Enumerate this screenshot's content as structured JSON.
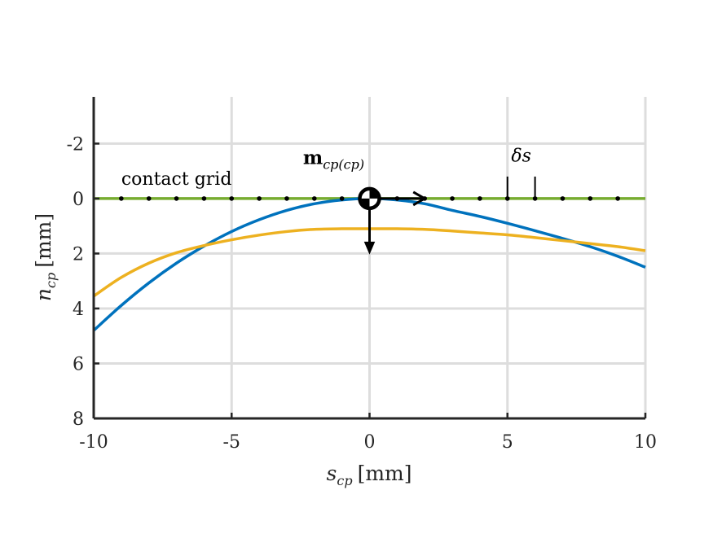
{
  "chart_data": {
    "type": "line",
    "title": "",
    "xlabel": {
      "main": "s",
      "sub": "cp",
      "unit": "[mm]"
    },
    "ylabel": {
      "main": "n",
      "sub": "cp",
      "unit": "[mm]"
    },
    "xlim": [
      -10,
      10
    ],
    "ylim": [
      -3.7,
      8
    ],
    "y_reversed": true,
    "grid": true,
    "x_ticks": [
      -10,
      -5,
      0,
      5,
      10
    ],
    "x_tick_labels": [
      "-10",
      "-5",
      "0",
      "5",
      "10"
    ],
    "y_ticks": [
      -2,
      0,
      2,
      4,
      6,
      8
    ],
    "y_tick_labels": [
      "-2",
      "0",
      "2",
      "4",
      "6",
      "8"
    ],
    "series": [
      {
        "color": "#77AC30",
        "x": [
          -10,
          10
        ],
        "y": [
          0,
          0
        ]
      },
      {
        "color": "#0072BD",
        "x": [
          -10,
          -9,
          -8,
          -7,
          -6,
          -5,
          -4,
          -3,
          -2,
          -1,
          0,
          1,
          2,
          3,
          4,
          5,
          6,
          7,
          8,
          9,
          10
        ],
        "y": [
          4.8,
          3.89,
          3.07,
          2.35,
          1.73,
          1.2,
          0.77,
          0.43,
          0.19,
          0.05,
          0.0,
          0.05,
          0.19,
          0.43,
          0.65,
          0.9,
          1.17,
          1.45,
          1.75,
          2.1,
          2.5
        ]
      },
      {
        "color": "#EDB120",
        "x": [
          -10,
          -9,
          -8,
          -7,
          -6,
          -5,
          -4,
          -3,
          -2,
          -1,
          0,
          1,
          2,
          3,
          4,
          5,
          6,
          7,
          8,
          9,
          10
        ],
        "y": [
          3.55,
          2.87,
          2.35,
          1.97,
          1.71,
          1.5,
          1.33,
          1.2,
          1.12,
          1.1,
          1.1,
          1.1,
          1.12,
          1.18,
          1.25,
          1.32,
          1.42,
          1.53,
          1.64,
          1.75,
          1.9
        ]
      }
    ],
    "contact_grid_points_x": [
      -9,
      -8,
      -7,
      -6,
      -5,
      -4,
      -3,
      -2,
      -1,
      0,
      1,
      2,
      3,
      4,
      5,
      6,
      7,
      8,
      9
    ],
    "annotations": {
      "contact_grid": {
        "text": "contact grid",
        "x": -9,
        "y": -0.5
      },
      "m_label": {
        "main": "m",
        "sub": "cp(cp)",
        "x": -1.3,
        "y": -1.25
      },
      "delta_s": {
        "text": "δs",
        "x": 5.5,
        "y": -1.35
      },
      "delta_s_marks": [
        5,
        6
      ],
      "frame_origin": [
        0,
        0
      ],
      "arrow_s_end": 2,
      "arrow_n_end": 2
    }
  }
}
